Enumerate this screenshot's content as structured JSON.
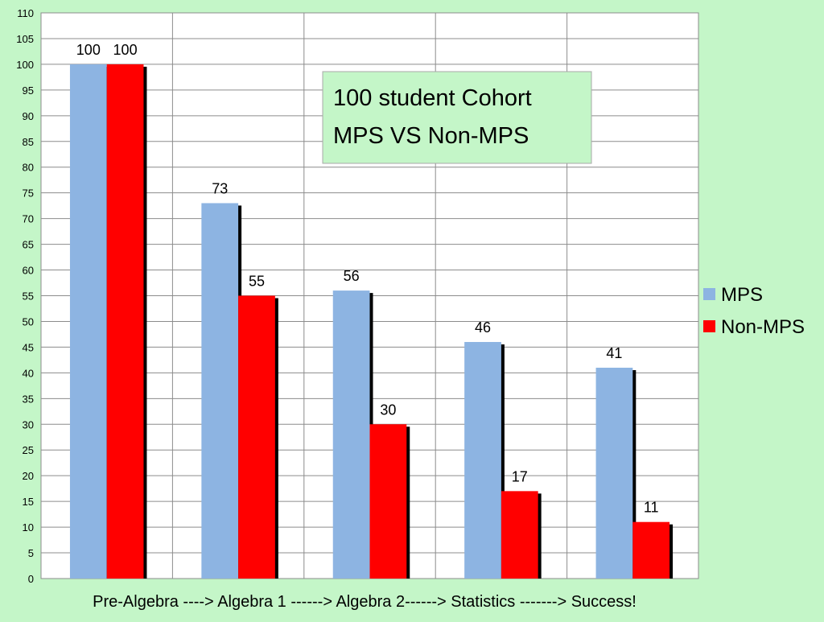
{
  "chart_data": {
    "type": "bar",
    "title": "",
    "xlabel": "Pre-Algebra ----> Algebra 1 ------> Algebra 2------> Statistics -------> Success!",
    "ylabel": "",
    "ylim": [
      0,
      110
    ],
    "ytick_step": 5,
    "grid": true,
    "legend_position": "right",
    "annotation": {
      "line1": "100 student Cohort",
      "line2": "MPS VS Non-MPS"
    },
    "categories": [
      "Pre-Algebra",
      "Algebra 1",
      "Algebra 2",
      "Statistics",
      "Success!"
    ],
    "series": [
      {
        "name": "MPS",
        "color": "#8db4e2",
        "values": [
          100,
          73,
          56,
          46,
          41
        ]
      },
      {
        "name": "Non-MPS",
        "color": "#ff0000",
        "values": [
          100,
          55,
          30,
          17,
          11
        ]
      }
    ]
  },
  "colors": {
    "background": "#c4f6c8",
    "plot_area": "#ffffff",
    "gridline": "#8c8c8c",
    "annotation_bg": "#c4f6c8",
    "bar_shadow": "#000000"
  }
}
